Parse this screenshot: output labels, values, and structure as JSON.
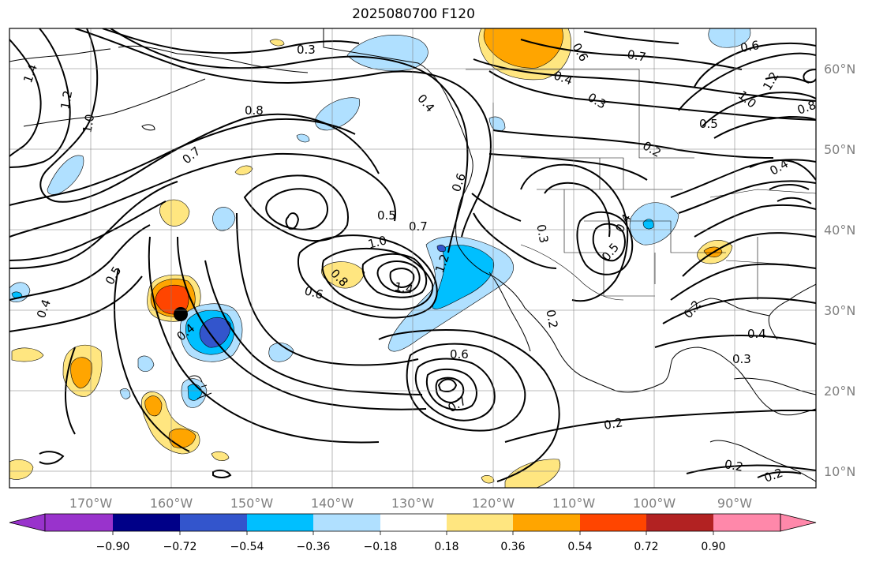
{
  "title": "2025080700 F120",
  "map": {
    "lon_ticks": [
      "170°W",
      "160°W",
      "150°W",
      "140°W",
      "130°W",
      "120°W",
      "110°W",
      "100°W",
      "90°W"
    ],
    "lat_ticks": [
      "60°N",
      "50°N",
      "40°N",
      "30°N",
      "20°N",
      "10°N"
    ]
  },
  "colorbar": {
    "ticks": [
      "−0.90",
      "−0.72",
      "−0.54",
      "−0.36",
      "−0.18",
      "0.18",
      "0.36",
      "0.54",
      "0.72",
      "0.90"
    ],
    "colors": [
      "#9933cc",
      "#000088",
      "#3355cc",
      "#00bfff",
      "#b0e0ff",
      "#ffffff",
      "#ffe680",
      "#ffa500",
      "#ff4500",
      "#b22222",
      "#ff88aa"
    ]
  },
  "contour_labels": [
    {
      "text": "0.3"
    },
    {
      "text": "1.4"
    },
    {
      "text": "1.2"
    },
    {
      "text": "1.0"
    },
    {
      "text": "0.8"
    },
    {
      "text": "0.7"
    },
    {
      "text": "0.5"
    },
    {
      "text": "0.4"
    },
    {
      "text": "0.4"
    },
    {
      "text": "0.8"
    },
    {
      "text": "0.6"
    },
    {
      "text": "1.0"
    },
    {
      "text": "0.7"
    },
    {
      "text": "0.5"
    },
    {
      "text": "1.4"
    },
    {
      "text": "1.2"
    },
    {
      "text": "0.6"
    },
    {
      "text": "0.4"
    },
    {
      "text": "0.6"
    },
    {
      "text": "0.7"
    },
    {
      "text": "0.2"
    },
    {
      "text": "0.6"
    },
    {
      "text": "0.7"
    },
    {
      "text": "0.4"
    },
    {
      "text": "0.3"
    },
    {
      "text": "0.5"
    },
    {
      "text": "0.2"
    },
    {
      "text": "0.6"
    },
    {
      "text": "1.2"
    },
    {
      "text": "1.0"
    },
    {
      "text": "0.8"
    },
    {
      "text": "0.4"
    },
    {
      "text": "0.3"
    },
    {
      "text": "0.4"
    },
    {
      "text": "0.5"
    },
    {
      "text": "0.2"
    },
    {
      "text": "0.4"
    },
    {
      "text": "0.3"
    },
    {
      "text": "0.2"
    },
    {
      "text": "0.2"
    },
    {
      "text": "0.2"
    }
  ]
}
